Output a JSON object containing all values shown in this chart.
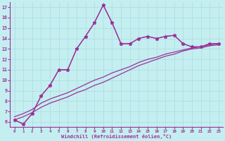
{
  "bg_color": "#c5eef0",
  "line_color": "#993399",
  "x_values": [
    0,
    1,
    2,
    3,
    4,
    5,
    6,
    7,
    8,
    9,
    10,
    11,
    12,
    13,
    14,
    15,
    16,
    17,
    18,
    19,
    20,
    21,
    22,
    23
  ],
  "line_marker_y": [
    6.2,
    5.8,
    6.8,
    8.5,
    9.5,
    11.0,
    11.0,
    13.0,
    14.2,
    15.5,
    17.2,
    15.5,
    13.5,
    13.5,
    14.0,
    14.2,
    14.0,
    14.2,
    14.3,
    13.5,
    13.2,
    13.2,
    13.5,
    13.5
  ],
  "line_plain_y": [
    6.2,
    5.8,
    6.8,
    8.5,
    9.5,
    11.0,
    11.0,
    13.0,
    14.2,
    15.5,
    17.2,
    15.5,
    13.5,
    13.5,
    14.0,
    14.2,
    14.0,
    14.2,
    14.3,
    13.5,
    13.2,
    13.2,
    13.5,
    13.5
  ],
  "line_diag1_y": [
    6.5,
    6.8,
    7.2,
    7.8,
    8.2,
    8.5,
    8.8,
    9.2,
    9.6,
    10.0,
    10.3,
    10.7,
    11.0,
    11.3,
    11.7,
    12.0,
    12.2,
    12.5,
    12.7,
    12.9,
    13.1,
    13.2,
    13.4,
    13.5
  ],
  "line_diag2_y": [
    6.2,
    6.5,
    6.9,
    7.4,
    7.8,
    8.1,
    8.4,
    8.8,
    9.1,
    9.5,
    9.8,
    10.2,
    10.6,
    11.0,
    11.4,
    11.7,
    12.0,
    12.3,
    12.5,
    12.8,
    13.0,
    13.1,
    13.3,
    13.4
  ],
  "xlabel": "Windchill (Refroidissement éolien,°C)",
  "ylim": [
    5.5,
    17.5
  ],
  "xlim": [
    -0.5,
    23.5
  ],
  "yticks": [
    6,
    7,
    8,
    9,
    10,
    11,
    12,
    13,
    14,
    15,
    16,
    17
  ],
  "xticks": [
    0,
    1,
    2,
    3,
    4,
    5,
    6,
    7,
    8,
    9,
    10,
    11,
    12,
    13,
    14,
    15,
    16,
    17,
    18,
    19,
    20,
    21,
    22,
    23
  ],
  "grid_color": "#a8dde0",
  "marker": "*",
  "markersize": 3.5,
  "linewidth": 0.9
}
